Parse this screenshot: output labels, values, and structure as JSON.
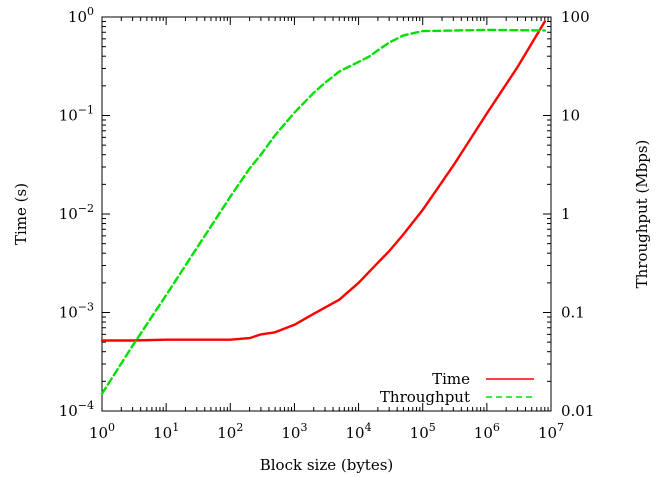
{
  "chart_data": {
    "type": "line",
    "title": "",
    "xlabel": "Block size (bytes)",
    "ylabel": "Time (s)",
    "y2label": "Throughput (Mbps)",
    "xscale": "log",
    "yscale": "log",
    "y2scale": "log",
    "xlim": [
      1,
      10000000
    ],
    "ylim": [
      0.0001,
      1
    ],
    "y2lim": [
      0.01,
      100
    ],
    "x_ticks": [
      {
        "value": 1,
        "base": "10",
        "exp": "0"
      },
      {
        "value": 10,
        "base": "10",
        "exp": "1"
      },
      {
        "value": 100,
        "base": "10",
        "exp": "2"
      },
      {
        "value": 1000,
        "base": "10",
        "exp": "3"
      },
      {
        "value": 10000,
        "base": "10",
        "exp": "4"
      },
      {
        "value": 100000,
        "base": "10",
        "exp": "5"
      },
      {
        "value": 1000000,
        "base": "10",
        "exp": "6"
      },
      {
        "value": 10000000,
        "base": "10",
        "exp": "7"
      }
    ],
    "y_ticks": [
      {
        "value": 0.0001,
        "base": "10",
        "exp": "−4"
      },
      {
        "value": 0.001,
        "base": "10",
        "exp": "−3"
      },
      {
        "value": 0.01,
        "base": "10",
        "exp": "−2"
      },
      {
        "value": 0.1,
        "base": "10",
        "exp": "−1"
      },
      {
        "value": 1,
        "base": "10",
        "exp": "0"
      }
    ],
    "y2_ticks": [
      {
        "value": 0.01,
        "label": "0.01"
      },
      {
        "value": 0.1,
        "label": "0.1"
      },
      {
        "value": 1,
        "label": "1"
      },
      {
        "value": 10,
        "label": "10"
      },
      {
        "value": 100,
        "label": "100"
      }
    ],
    "grid": false,
    "legend_position": "bottom-right",
    "series": [
      {
        "name": "Time",
        "axis": "left",
        "color": "#ff0000",
        "dash": "solid",
        "x": [
          1,
          3,
          10,
          30,
          100,
          200,
          300,
          500,
          1000,
          2000,
          5000,
          10000,
          20000,
          30000,
          50000,
          100000,
          300000,
          1000000,
          3000000,
          8000000
        ],
        "y": [
          0.00052,
          0.00052,
          0.00053,
          0.00053,
          0.00053,
          0.00055,
          0.0006,
          0.00063,
          0.00075,
          0.00097,
          0.00135,
          0.002,
          0.0032,
          0.0042,
          0.0062,
          0.011,
          0.031,
          0.105,
          0.31,
          0.9
        ]
      },
      {
        "name": "Throughput",
        "axis": "right",
        "color": "#00e000",
        "dash": "dashed",
        "x": [
          1,
          3,
          10,
          30,
          100,
          200,
          300,
          500,
          1000,
          2000,
          3000,
          5000,
          10000,
          15000,
          20000,
          30000,
          50000,
          100000,
          1000000,
          8000000
        ],
        "y": [
          0.015,
          0.046,
          0.15,
          0.45,
          1.5,
          2.9,
          4.0,
          6.3,
          10.7,
          17.0,
          21.5,
          28.0,
          35.0,
          40.0,
          46.0,
          55.0,
          65.0,
          72.0,
          74.0,
          73.0
        ]
      }
    ]
  }
}
